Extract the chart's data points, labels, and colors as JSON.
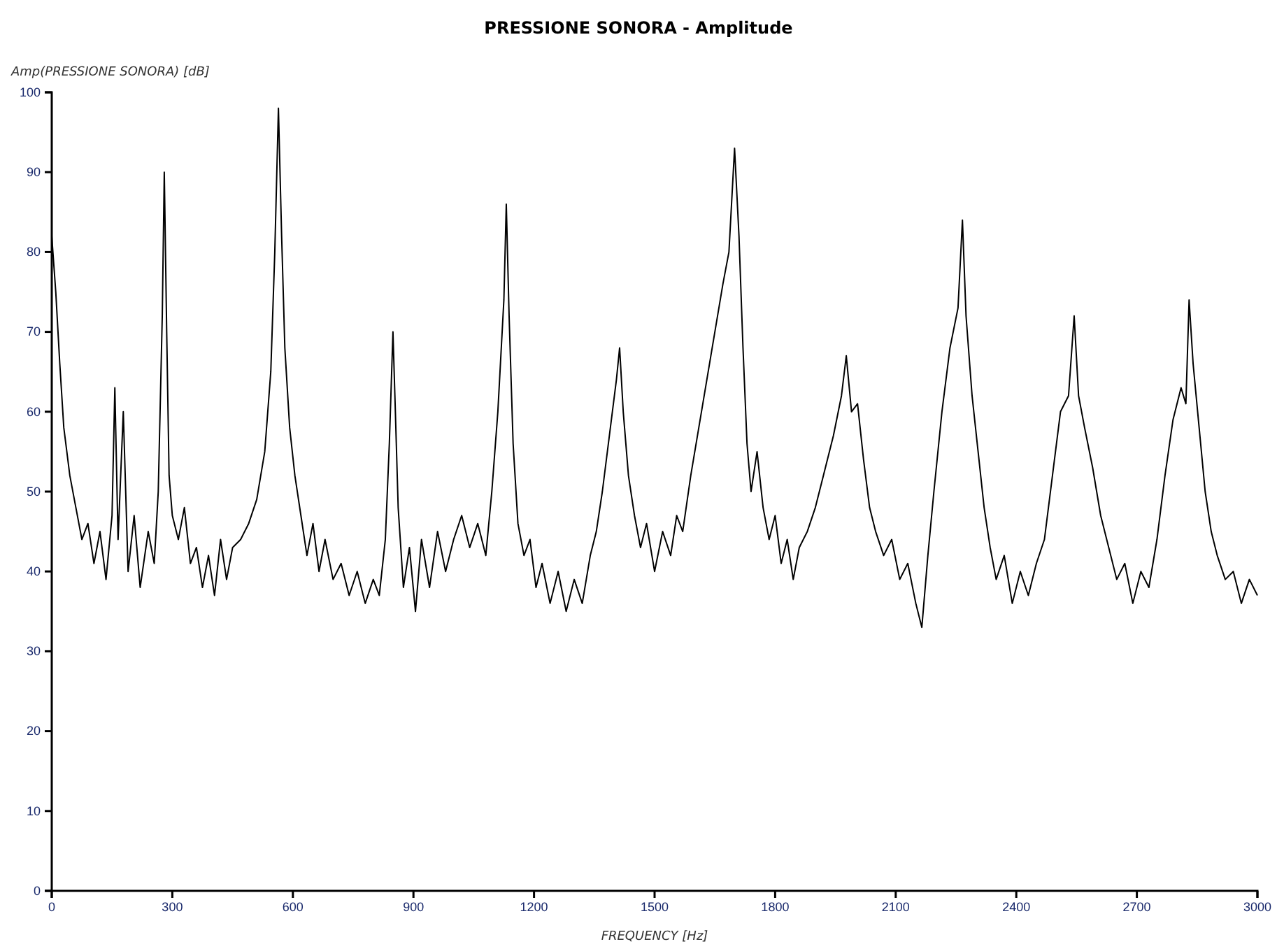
{
  "chart_data": {
    "type": "line",
    "title": "PRESSIONE SONORA - Amplitude",
    "xlabel": "FREQUENCY [Hz]",
    "ylabel": "Amp(PRESSIONE SONORA) [dB]",
    "xlim": [
      0,
      3000
    ],
    "xticks": [
      0,
      300,
      600,
      900,
      1200,
      1500,
      1800,
      2100,
      2400,
      2700,
      3000
    ],
    "ylim": [
      0,
      100
    ],
    "yticks": [
      0,
      10,
      20,
      30,
      40,
      50,
      60,
      70,
      80,
      90,
      100
    ],
    "grid": false,
    "line_style": "solid",
    "series": [
      {
        "color": "#000000",
        "x": [
          0,
          10,
          20,
          30,
          45,
          60,
          75,
          90,
          105,
          120,
          135,
          150,
          157,
          165,
          178,
          190,
          205,
          220,
          240,
          255,
          265,
          275,
          280,
          286,
          292,
          300,
          315,
          330,
          345,
          360,
          375,
          390,
          405,
          420,
          435,
          450,
          470,
          490,
          510,
          530,
          545,
          555,
          564,
          572,
          580,
          592,
          605,
          620,
          635,
          650,
          665,
          680,
          700,
          720,
          740,
          760,
          780,
          800,
          815,
          830,
          840,
          849,
          855,
          862,
          875,
          890,
          905,
          920,
          940,
          960,
          980,
          1000,
          1020,
          1040,
          1060,
          1080,
          1095,
          1110,
          1125,
          1131,
          1138,
          1148,
          1160,
          1175,
          1190,
          1205,
          1220,
          1240,
          1260,
          1280,
          1300,
          1320,
          1340,
          1355,
          1370,
          1390,
          1405,
          1413,
          1422,
          1435,
          1450,
          1465,
          1480,
          1500,
          1520,
          1540,
          1555,
          1570,
          1590,
          1610,
          1630,
          1650,
          1670,
          1685,
          1699,
          1710,
          1720,
          1730,
          1740,
          1755,
          1770,
          1785,
          1800,
          1815,
          1830,
          1845,
          1860,
          1880,
          1900,
          1920,
          1945,
          1965,
          1977,
          1990,
          2005,
          2020,
          2035,
          2050,
          2070,
          2090,
          2110,
          2130,
          2150,
          2165,
          2180,
          2195,
          2215,
          2235,
          2255,
          2266,
          2275,
          2290,
          2305,
          2320,
          2335,
          2350,
          2370,
          2390,
          2410,
          2430,
          2450,
          2470,
          2490,
          2510,
          2530,
          2544,
          2555,
          2570,
          2590,
          2610,
          2630,
          2650,
          2670,
          2690,
          2710,
          2730,
          2750,
          2770,
          2790,
          2810,
          2822,
          2830,
          2840,
          2855,
          2870,
          2885,
          2900,
          2920,
          2940,
          2960,
          2980,
          3000
        ],
        "values": [
          82,
          75,
          66,
          58,
          52,
          48,
          44,
          46,
          41,
          45,
          39,
          47,
          63,
          44,
          60,
          40,
          47,
          38,
          45,
          41,
          50,
          72,
          90,
          70,
          52,
          47,
          44,
          48,
          41,
          43,
          38,
          42,
          37,
          44,
          39,
          43,
          44,
          46,
          49,
          55,
          65,
          80,
          98,
          82,
          68,
          58,
          52,
          47,
          42,
          46,
          40,
          44,
          39,
          41,
          37,
          40,
          36,
          39,
          37,
          44,
          56,
          70,
          60,
          48,
          38,
          43,
          35,
          44,
          38,
          45,
          40,
          44,
          47,
          43,
          46,
          42,
          50,
          60,
          74,
          86,
          72,
          56,
          46,
          42,
          44,
          38,
          41,
          36,
          40,
          35,
          39,
          36,
          42,
          45,
          50,
          58,
          64,
          68,
          60,
          52,
          47,
          43,
          46,
          40,
          45,
          42,
          47,
          45,
          52,
          58,
          64,
          70,
          76,
          80,
          93,
          82,
          68,
          56,
          50,
          55,
          48,
          44,
          47,
          41,
          44,
          39,
          43,
          45,
          48,
          52,
          57,
          62,
          67,
          60,
          61,
          54,
          48,
          45,
          42,
          44,
          39,
          41,
          36,
          33,
          42,
          50,
          60,
          68,
          73,
          84,
          72,
          62,
          55,
          48,
          43,
          39,
          42,
          36,
          40,
          37,
          41,
          44,
          52,
          60,
          62,
          72,
          62,
          58,
          53,
          47,
          43,
          39,
          41,
          36,
          40,
          38,
          44,
          52,
          59,
          63,
          61,
          74,
          66,
          58,
          50,
          45,
          42,
          39,
          40,
          36,
          39,
          37
        ]
      }
    ]
  }
}
